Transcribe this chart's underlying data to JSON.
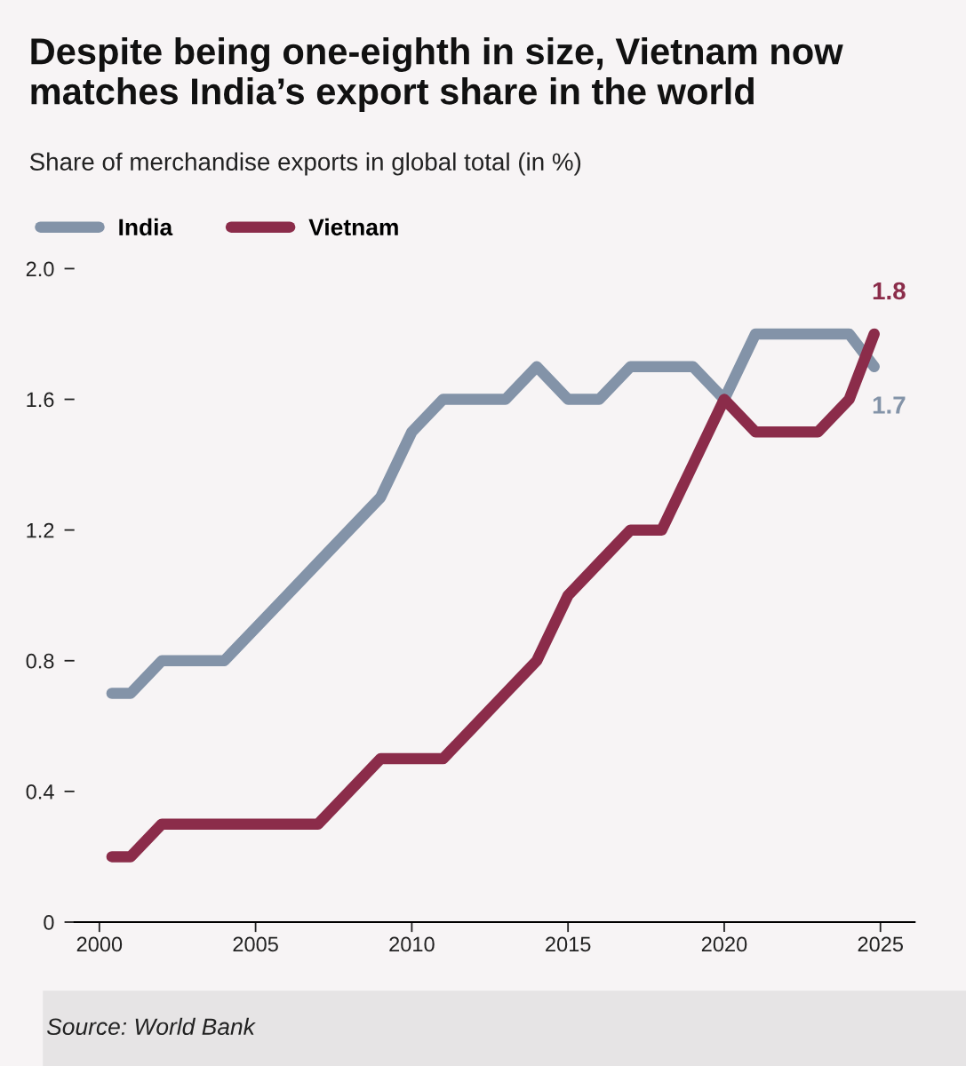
{
  "chart_data": {
    "type": "line",
    "title": "Despite being one-eighth in size, Vietnam now matches India’s export share in the world",
    "subtitle": "Share of merchandise exports in global total (in %)",
    "x": [
      2000.4,
      2001,
      2002,
      2003,
      2004,
      2005,
      2006,
      2007,
      2008,
      2009,
      2010,
      2011,
      2012,
      2013,
      2014,
      2015,
      2016,
      2017,
      2018,
      2019,
      2020,
      2021,
      2022,
      2023,
      2024,
      2024.8
    ],
    "series": [
      {
        "name": "India",
        "color": "#8393a8",
        "values": [
          0.7,
          0.7,
          0.8,
          0.8,
          0.8,
          0.9,
          1.0,
          1.1,
          1.2,
          1.3,
          1.5,
          1.6,
          1.6,
          1.6,
          1.7,
          1.6,
          1.6,
          1.7,
          1.7,
          1.7,
          1.6,
          1.8,
          1.8,
          1.8,
          1.8,
          1.7
        ]
      },
      {
        "name": "Vietnam",
        "color": "#8b2c4a",
        "values": [
          0.2,
          0.2,
          0.3,
          0.3,
          0.3,
          0.3,
          0.3,
          0.3,
          0.4,
          0.5,
          0.5,
          0.5,
          0.6,
          0.7,
          0.8,
          1.0,
          1.1,
          1.2,
          1.2,
          1.4,
          1.6,
          1.5,
          1.5,
          1.5,
          1.6,
          1.8
        ]
      }
    ],
    "xlim": [
      1999.2,
      2026.1
    ],
    "xticks": [
      2000,
      2005,
      2010,
      2015,
      2020,
      2025
    ],
    "ylim": [
      0,
      2.0
    ],
    "yticks": [
      0,
      0.4,
      0.8,
      1.2,
      1.6,
      {
        "value": 2.0,
        "label": "2.0"
      }
    ],
    "annotations": [
      {
        "text": "1.8",
        "x": 2024.8,
        "y": 1.8
      },
      {
        "text": "1.7",
        "x": 2024.8,
        "y": 1.7
      },
      "Source: World Bank"
    ],
    "legend": "top left",
    "grid": false,
    "line_style": "solid"
  }
}
